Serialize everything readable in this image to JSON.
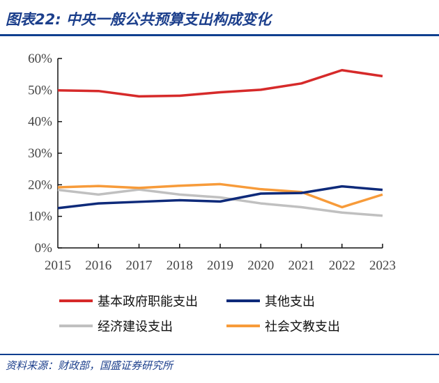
{
  "title": "图表22:  中央一般公共预算支出构成变化",
  "source": "资料来源：财政部，国盛证券研究所",
  "chart_data": {
    "type": "line",
    "title": "",
    "xlabel": "",
    "ylabel": "",
    "x": [
      "2015",
      "2016",
      "2017",
      "2018",
      "2019",
      "2020",
      "2021",
      "2022",
      "2023"
    ],
    "ylim": [
      0,
      60
    ],
    "yticks": [
      "0%",
      "10%",
      "20%",
      "30%",
      "40%",
      "50%",
      "60%"
    ],
    "grid": false,
    "legend": "bottom",
    "series": [
      {
        "name": "基本政府职能支出",
        "color": "#d62a2a",
        "values": [
          49.9,
          49.7,
          48.0,
          48.2,
          49.3,
          50.1,
          52.1,
          56.3,
          54.4
        ]
      },
      {
        "name": "其他支出",
        "color": "#0e2a7a",
        "values": [
          12.6,
          14.1,
          14.6,
          15.1,
          14.7,
          17.2,
          17.4,
          19.5,
          18.4
        ]
      },
      {
        "name": "经济建设支出",
        "color": "#c0c0c0",
        "values": [
          18.4,
          16.9,
          18.5,
          16.9,
          16.0,
          14.1,
          12.9,
          11.2,
          10.2
        ]
      },
      {
        "name": "社会文教支出",
        "color": "#f79b3a",
        "values": [
          19.2,
          19.6,
          19.0,
          19.7,
          20.2,
          18.6,
          17.7,
          12.9,
          16.9
        ]
      }
    ]
  }
}
